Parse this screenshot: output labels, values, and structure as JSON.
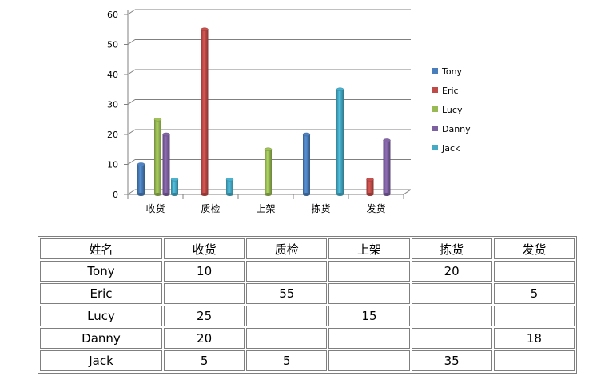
{
  "chart_data": {
    "type": "bar",
    "categories": [
      "收货",
      "质检",
      "上架",
      "拣货",
      "发货"
    ],
    "series": [
      {
        "name": "Tony",
        "color": "#4a7ebb",
        "values": [
          10,
          null,
          null,
          20,
          null
        ]
      },
      {
        "name": "Eric",
        "color": "#be4b48",
        "values": [
          null,
          55,
          null,
          null,
          5
        ]
      },
      {
        "name": "Lucy",
        "color": "#98b954",
        "values": [
          25,
          null,
          15,
          null,
          null
        ]
      },
      {
        "name": "Danny",
        "color": "#7d60a0",
        "values": [
          20,
          null,
          null,
          null,
          18
        ]
      },
      {
        "name": "Jack",
        "color": "#46aac5",
        "values": [
          5,
          5,
          null,
          35,
          null
        ]
      }
    ],
    "ylim": [
      0,
      60
    ],
    "yticks": [
      0,
      10,
      20,
      30,
      40,
      50,
      60
    ],
    "grid": true,
    "legend_position": "right"
  },
  "table": {
    "header": [
      "姓名",
      "收货",
      "质检",
      "上架",
      "拣货",
      "发货"
    ],
    "rows": [
      [
        "Tony",
        "10",
        "",
        "",
        "20",
        ""
      ],
      [
        "Eric",
        "",
        "55",
        "",
        "",
        "5"
      ],
      [
        "Lucy",
        "25",
        "",
        "15",
        "",
        ""
      ],
      [
        "Danny",
        "20",
        "",
        "",
        "",
        "18"
      ],
      [
        "Jack",
        "5",
        "5",
        "",
        "35",
        ""
      ]
    ]
  }
}
